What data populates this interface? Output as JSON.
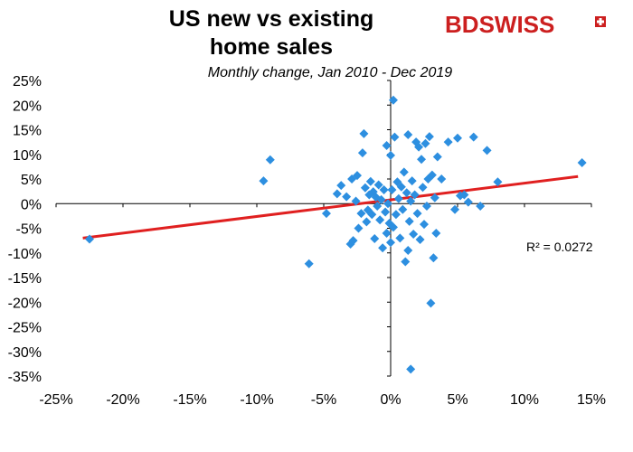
{
  "logo": {
    "text_a": "BD",
    "text_b": "SWISS"
  },
  "chart_data": {
    "type": "scatter",
    "title": "US new vs existing\nhome sales",
    "subtitle": "Monthly change, Jan  2010 - Dec 2019",
    "xlabel": "",
    "ylabel": "",
    "xlim": [
      -0.25,
      0.15
    ],
    "ylim": [
      -0.35,
      0.25
    ],
    "x_ticks": [
      -0.25,
      -0.2,
      -0.15,
      -0.1,
      -0.05,
      0.0,
      0.05,
      0.1,
      0.15
    ],
    "x_tick_labels": [
      "-25%",
      "-20%",
      "-15%",
      "-10%",
      "-5%",
      "0%",
      "5%",
      "10%",
      "15%"
    ],
    "y_ticks": [
      0.25,
      0.2,
      0.15,
      0.1,
      0.05,
      0.0,
      -0.05,
      -0.1,
      -0.15,
      -0.2,
      -0.25,
      -0.3,
      -0.35
    ],
    "y_tick_labels": [
      "25%",
      "20%",
      "15%",
      "10%",
      "5%",
      "0%",
      "-5%",
      "-10%",
      "-15%",
      "-20%",
      "-25%",
      "-30%",
      "-35%"
    ],
    "grid": false,
    "marker_color": "#2d8fe0",
    "trendline_color": "#e02020",
    "trendline": {
      "x": [
        -0.23,
        0.14
      ],
      "y": [
        -0.07,
        0.055
      ]
    },
    "r_squared_label": "R² = 0.0272",
    "points": [
      {
        "x": -0.225,
        "y": -0.072
      },
      {
        "x": -0.095,
        "y": 0.046
      },
      {
        "x": -0.09,
        "y": 0.089
      },
      {
        "x": -0.061,
        "y": -0.122
      },
      {
        "x": -0.048,
        "y": -0.02
      },
      {
        "x": -0.04,
        "y": 0.02
      },
      {
        "x": -0.037,
        "y": 0.037
      },
      {
        "x": -0.033,
        "y": 0.014
      },
      {
        "x": -0.03,
        "y": -0.082
      },
      {
        "x": -0.029,
        "y": 0.05
      },
      {
        "x": -0.028,
        "y": -0.075
      },
      {
        "x": -0.026,
        "y": 0.005
      },
      {
        "x": -0.025,
        "y": 0.057
      },
      {
        "x": -0.024,
        "y": -0.05
      },
      {
        "x": -0.022,
        "y": -0.02
      },
      {
        "x": -0.021,
        "y": 0.103
      },
      {
        "x": -0.02,
        "y": 0.142
      },
      {
        "x": -0.019,
        "y": 0.032
      },
      {
        "x": -0.018,
        "y": -0.037
      },
      {
        "x": -0.017,
        "y": -0.013
      },
      {
        "x": -0.016,
        "y": 0.018
      },
      {
        "x": -0.015,
        "y": 0.045
      },
      {
        "x": -0.014,
        "y": -0.022
      },
      {
        "x": -0.013,
        "y": 0.024
      },
      {
        "x": -0.012,
        "y": -0.071
      },
      {
        "x": -0.011,
        "y": 0.013
      },
      {
        "x": -0.01,
        "y": -0.005
      },
      {
        "x": -0.009,
        "y": 0.038
      },
      {
        "x": -0.008,
        "y": -0.033
      },
      {
        "x": -0.007,
        "y": 0.008
      },
      {
        "x": -0.006,
        "y": -0.09
      },
      {
        "x": -0.005,
        "y": 0.028
      },
      {
        "x": -0.004,
        "y": -0.017
      },
      {
        "x": -0.003,
        "y": 0.118
      },
      {
        "x": -0.003,
        "y": -0.06
      },
      {
        "x": -0.002,
        "y": 0.0
      },
      {
        "x": -0.001,
        "y": -0.04
      },
      {
        "x": 0.0,
        "y": 0.098
      },
      {
        "x": 0.0,
        "y": -0.079
      },
      {
        "x": 0.001,
        "y": 0.028
      },
      {
        "x": 0.002,
        "y": 0.21
      },
      {
        "x": 0.002,
        "y": -0.048
      },
      {
        "x": 0.003,
        "y": 0.135
      },
      {
        "x": 0.004,
        "y": -0.022
      },
      {
        "x": 0.005,
        "y": 0.044
      },
      {
        "x": 0.006,
        "y": 0.01
      },
      {
        "x": 0.007,
        "y": -0.07
      },
      {
        "x": 0.008,
        "y": 0.034
      },
      {
        "x": 0.009,
        "y": -0.012
      },
      {
        "x": 0.01,
        "y": 0.064
      },
      {
        "x": 0.011,
        "y": -0.118
      },
      {
        "x": 0.012,
        "y": 0.022
      },
      {
        "x": 0.013,
        "y": -0.095
      },
      {
        "x": 0.013,
        "y": 0.14
      },
      {
        "x": 0.014,
        "y": -0.036
      },
      {
        "x": 0.015,
        "y": 0.005
      },
      {
        "x": 0.015,
        "y": -0.336
      },
      {
        "x": 0.016,
        "y": 0.046
      },
      {
        "x": 0.017,
        "y": -0.062
      },
      {
        "x": 0.018,
        "y": 0.018
      },
      {
        "x": 0.019,
        "y": 0.125
      },
      {
        "x": 0.02,
        "y": -0.02
      },
      {
        "x": 0.021,
        "y": 0.115
      },
      {
        "x": 0.022,
        "y": -0.073
      },
      {
        "x": 0.023,
        "y": 0.09
      },
      {
        "x": 0.024,
        "y": 0.033
      },
      {
        "x": 0.025,
        "y": -0.042
      },
      {
        "x": 0.026,
        "y": 0.122
      },
      {
        "x": 0.027,
        "y": -0.005
      },
      {
        "x": 0.028,
        "y": 0.05
      },
      {
        "x": 0.029,
        "y": 0.136
      },
      {
        "x": 0.03,
        "y": -0.202
      },
      {
        "x": 0.031,
        "y": 0.058
      },
      {
        "x": 0.032,
        "y": -0.11
      },
      {
        "x": 0.033,
        "y": 0.012
      },
      {
        "x": 0.034,
        "y": -0.06
      },
      {
        "x": 0.035,
        "y": 0.095
      },
      {
        "x": 0.038,
        "y": 0.05
      },
      {
        "x": 0.043,
        "y": 0.125
      },
      {
        "x": 0.048,
        "y": -0.012
      },
      {
        "x": 0.05,
        "y": 0.133
      },
      {
        "x": 0.052,
        "y": 0.016
      },
      {
        "x": 0.055,
        "y": 0.018
      },
      {
        "x": 0.058,
        "y": 0.003
      },
      {
        "x": 0.062,
        "y": 0.135
      },
      {
        "x": 0.067,
        "y": -0.005
      },
      {
        "x": 0.072,
        "y": 0.108
      },
      {
        "x": 0.08,
        "y": 0.044
      },
      {
        "x": 0.143,
        "y": 0.083
      }
    ]
  }
}
